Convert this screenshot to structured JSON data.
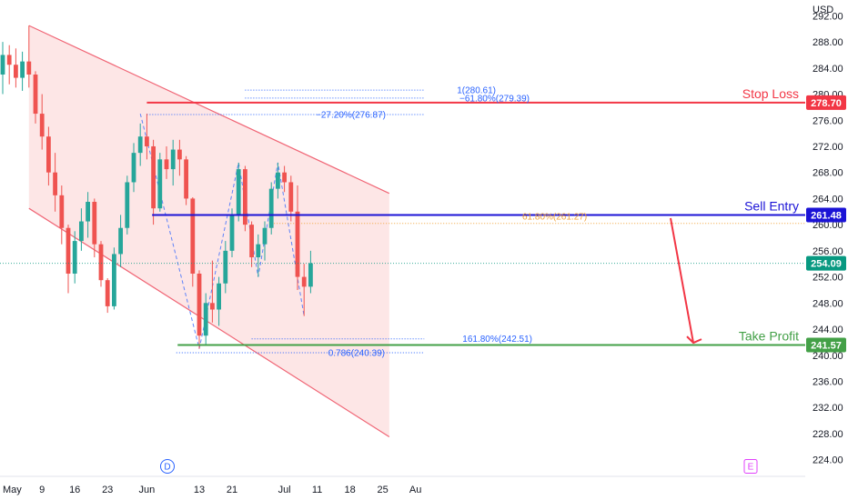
{
  "chart_data": {
    "type": "candlestick",
    "currency": "USD",
    "ylim": [
      222,
      294
    ],
    "y_ticks": [
      224,
      228,
      232,
      236,
      240,
      244,
      248,
      252,
      256,
      260,
      264,
      268,
      272,
      276,
      280,
      284,
      288,
      292
    ],
    "y_tick_labels": [
      "224.00",
      "228.00",
      "232.00",
      "236.00",
      "240.00",
      "244.00",
      "248.00",
      "252.00",
      "256.00",
      "260.00",
      "264.00",
      "268.00",
      "272.00",
      "276.00",
      "280.00",
      "284.00",
      "288.00",
      "292.00"
    ],
    "x_ticks": [
      {
        "label": "May",
        "t": 0
      },
      {
        "label": "9",
        "t": 6
      },
      {
        "label": "16",
        "t": 11
      },
      {
        "label": "23",
        "t": 16
      },
      {
        "label": "Jun",
        "t": 22
      },
      {
        "label": "13",
        "t": 30
      },
      {
        "label": "21",
        "t": 35
      },
      {
        "label": "Jul",
        "t": 43
      },
      {
        "label": "11",
        "t": 48
      },
      {
        "label": "18",
        "t": 53
      },
      {
        "label": "25",
        "t": 58
      },
      {
        "label": "Au",
        "t": 63
      }
    ],
    "candles": [
      {
        "o": 283.0,
        "h": 288.0,
        "l": 280.0,
        "c": 286.0
      },
      {
        "o": 286.0,
        "h": 287.5,
        "l": 281.5,
        "c": 284.5
      },
      {
        "o": 284.5,
        "h": 287.0,
        "l": 281.0,
        "c": 282.5
      },
      {
        "o": 282.5,
        "h": 286.5,
        "l": 280.5,
        "c": 285.0
      },
      {
        "o": 285.0,
        "h": 290.5,
        "l": 281.0,
        "c": 283.0
      },
      {
        "o": 283.0,
        "h": 283.5,
        "l": 275.5,
        "c": 277.0
      },
      {
        "o": 277.0,
        "h": 280.0,
        "l": 271.5,
        "c": 273.5
      },
      {
        "o": 273.5,
        "h": 275.0,
        "l": 266.0,
        "c": 268.0
      },
      {
        "o": 268.0,
        "h": 271.0,
        "l": 262.0,
        "c": 264.5
      },
      {
        "o": 264.5,
        "h": 266.0,
        "l": 257.0,
        "c": 259.5
      },
      {
        "o": 259.5,
        "h": 260.0,
        "l": 249.5,
        "c": 252.5
      },
      {
        "o": 252.5,
        "h": 259.0,
        "l": 251.0,
        "c": 257.5
      },
      {
        "o": 257.5,
        "h": 262.5,
        "l": 256.0,
        "c": 260.5
      },
      {
        "o": 260.5,
        "h": 265.0,
        "l": 258.0,
        "c": 263.5
      },
      {
        "o": 263.5,
        "h": 264.0,
        "l": 255.0,
        "c": 257.0
      },
      {
        "o": 257.0,
        "h": 257.5,
        "l": 250.5,
        "c": 251.5
      },
      {
        "o": 251.5,
        "h": 251.8,
        "l": 246.5,
        "c": 247.5
      },
      {
        "o": 247.5,
        "h": 256.5,
        "l": 247.0,
        "c": 255.5
      },
      {
        "o": 255.5,
        "h": 261.5,
        "l": 253.5,
        "c": 259.5
      },
      {
        "o": 259.5,
        "h": 267.5,
        "l": 258.5,
        "c": 266.5
      },
      {
        "o": 266.5,
        "h": 272.5,
        "l": 265.0,
        "c": 271.0
      },
      {
        "o": 271.0,
        "h": 275.5,
        "l": 269.0,
        "c": 273.5
      },
      {
        "o": 273.5,
        "h": 277.0,
        "l": 270.0,
        "c": 272.0
      },
      {
        "o": 272.0,
        "h": 273.0,
        "l": 260.0,
        "c": 262.5
      },
      {
        "o": 262.5,
        "h": 271.0,
        "l": 262.0,
        "c": 270.0
      },
      {
        "o": 270.0,
        "h": 272.0,
        "l": 267.0,
        "c": 268.5
      },
      {
        "o": 268.5,
        "h": 273.0,
        "l": 266.0,
        "c": 271.5
      },
      {
        "o": 271.5,
        "h": 273.0,
        "l": 267.5,
        "c": 270.0
      },
      {
        "o": 270.0,
        "h": 270.5,
        "l": 263.0,
        "c": 264.0
      },
      {
        "o": 264.0,
        "h": 264.2,
        "l": 250.5,
        "c": 252.5
      },
      {
        "o": 252.5,
        "h": 253.0,
        "l": 241.0,
        "c": 243.0
      },
      {
        "o": 243.0,
        "h": 249.5,
        "l": 241.5,
        "c": 248.0
      },
      {
        "o": 248.0,
        "h": 254.5,
        "l": 245.0,
        "c": 247.0
      },
      {
        "o": 247.0,
        "h": 252.0,
        "l": 244.5,
        "c": 251.0
      },
      {
        "o": 251.0,
        "h": 257.5,
        "l": 249.5,
        "c": 256.0
      },
      {
        "o": 256.0,
        "h": 262.5,
        "l": 255.0,
        "c": 261.5
      },
      {
        "o": 261.5,
        "h": 269.5,
        "l": 260.5,
        "c": 268.5
      },
      {
        "o": 268.5,
        "h": 269.0,
        "l": 259.0,
        "c": 260.0
      },
      {
        "o": 260.0,
        "h": 260.5,
        "l": 253.5,
        "c": 255.0
      },
      {
        "o": 255.0,
        "h": 258.5,
        "l": 252.0,
        "c": 257.0
      },
      {
        "o": 257.0,
        "h": 260.5,
        "l": 254.5,
        "c": 259.5
      },
      {
        "o": 259.5,
        "h": 266.5,
        "l": 258.5,
        "c": 265.5
      },
      {
        "o": 265.5,
        "h": 269.5,
        "l": 264.0,
        "c": 268.0
      },
      {
        "o": 268.0,
        "h": 269.0,
        "l": 265.0,
        "c": 266.5
      },
      {
        "o": 266.5,
        "h": 267.5,
        "l": 260.5,
        "c": 262.0
      },
      {
        "o": 262.0,
        "h": 266.0,
        "l": 250.0,
        "c": 252.0
      },
      {
        "o": 252.0,
        "h": 254.0,
        "l": 246.0,
        "c": 250.5
      },
      {
        "o": 250.5,
        "h": 256.0,
        "l": 249.5,
        "c": 254.09
      }
    ],
    "channel": {
      "upper": [
        {
          "t": 4,
          "v": 290.5
        },
        {
          "t": 59,
          "v": 264.8
        }
      ],
      "lower": [
        {
          "t": 4,
          "v": 262.5
        },
        {
          "t": 59,
          "v": 227.5
        }
      ]
    },
    "levels": [
      {
        "name": "Stop Loss",
        "value": 278.7,
        "label": "278.70",
        "color": "#f23645"
      },
      {
        "name": "Sell Entry",
        "value": 261.48,
        "label": "261.48",
        "color": "#1b13d6"
      },
      {
        "name": "Take Profit",
        "value": 241.57,
        "label": "241.57",
        "color": "#43a047"
      }
    ],
    "current_price": {
      "value": 254.09,
      "label": "254.09",
      "color": "#089981"
    },
    "fib_labels": [
      {
        "text": "1(280.61)",
        "value": 280.61,
        "t": 37,
        "style": "fib"
      },
      {
        "text": "−61.80%(279.39)",
        "value": 279.39,
        "t": 37,
        "style": "fib"
      },
      {
        "text": "−27.20%(276.87)",
        "value": 276.87,
        "t": 25,
        "style": "fib"
      },
      {
        "text": "61.80%(261.27)",
        "value": 261.27,
        "t": 41,
        "style": "fibo"
      },
      {
        "text": "161.80%(242.51)",
        "value": 242.51,
        "t": 38,
        "style": "fib"
      },
      {
        "text": "0.786(240.39)",
        "value": 240.39,
        "t": 26.5,
        "style": "fib"
      }
    ],
    "badges": [
      {
        "text": "D",
        "t": 13.5,
        "color": "#2962ff"
      },
      {
        "text": "E",
        "t": 59,
        "color": "#e040fb"
      }
    ],
    "colors": {
      "up": "#26a69a",
      "down": "#ef5350",
      "channel_fill": "#fde2e2",
      "channel_line": "#f06575"
    }
  }
}
